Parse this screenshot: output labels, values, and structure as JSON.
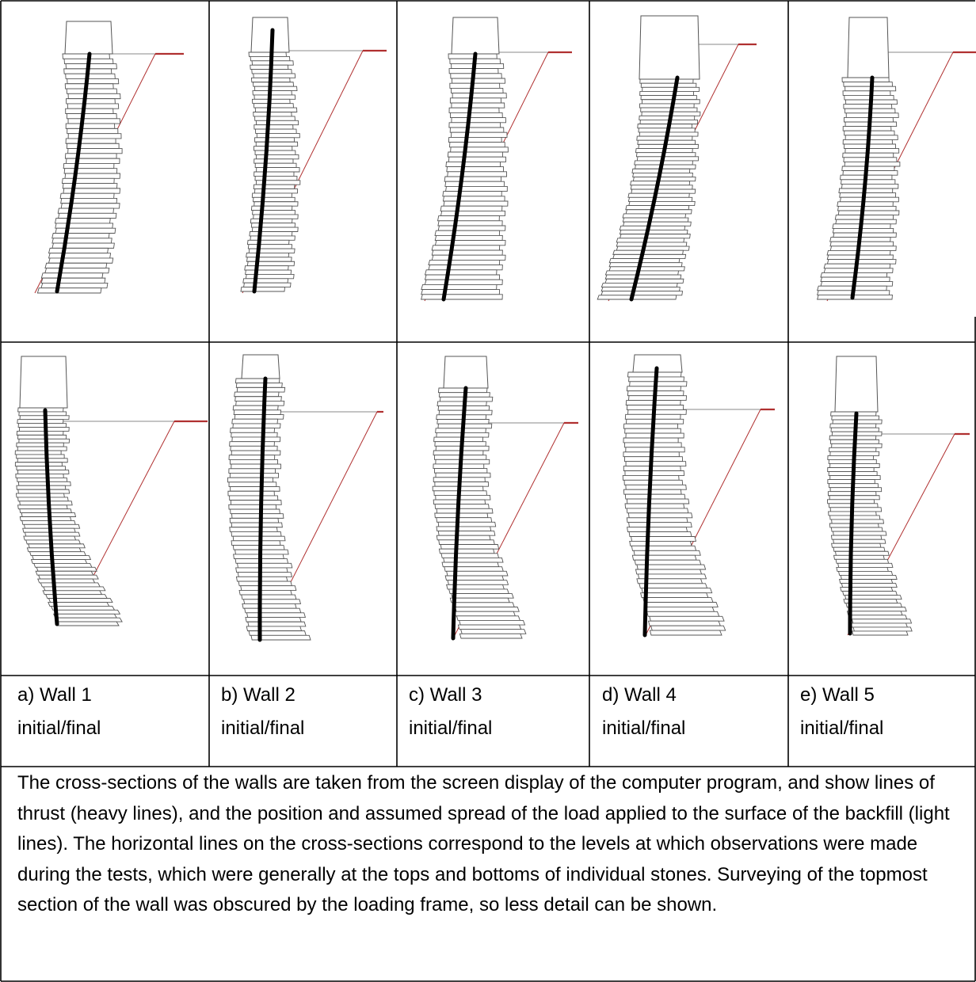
{
  "panels": [
    {
      "label": "a) Wall 1",
      "state": "initial/final"
    },
    {
      "label": "b) Wall 2",
      "state": "initial/final"
    },
    {
      "label": "c) Wall 3",
      "state": "initial/final"
    },
    {
      "label": "d) Wall 4",
      "state": "initial/final"
    },
    {
      "label": "e) Wall 5",
      "state": "initial/final"
    }
  ],
  "caption": "The cross-sections of the walls are taken from the screen display of the computer program, and show lines of thrust (heavy lines), and the position and assumed spread of the load applied to the surface of the backfill (light lines). The horizontal lines on the cross-sections correspond to the levels at which observations were made during the tests, which were generally at the tops and bottoms of individual stones.  Surveying of the topmost section of the wall was obscured by the loading frame, so less detail can be shown.",
  "colors": {
    "border": "#000000",
    "outline": "#555555",
    "thrust": "#000000",
    "load": "#b03030"
  },
  "legend_semantics": {
    "thrust_line": "heavy lines",
    "load_spread": "light lines"
  }
}
